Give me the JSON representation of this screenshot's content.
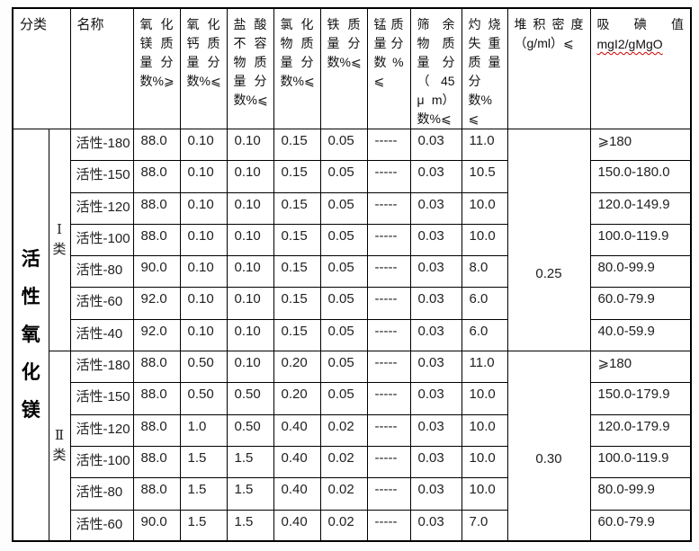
{
  "header": {
    "classification": "分类",
    "name": "名称",
    "cols": [
      {
        "id": "mgo-mass-fraction",
        "lines": [
          "氧 化",
          "镁 质",
          "量 分",
          "数%⩾"
        ]
      },
      {
        "id": "cao-mass-fraction",
        "lines": [
          "氧 化",
          "钙 质",
          "量 分",
          "数%⩽"
        ]
      },
      {
        "id": "hcl-insoluble-fraction",
        "lines": [
          "盐 酸",
          "不 容",
          "物 质",
          "量 分",
          "数%⩽"
        ]
      },
      {
        "id": "chloride-fraction",
        "lines": [
          "氯 化",
          "物 质",
          "量 分",
          "数%⩽"
        ]
      },
      {
        "id": "iron-fraction",
        "lines": [
          "铁 质",
          "量 分",
          "数%⩽"
        ]
      },
      {
        "id": "manganese-fraction",
        "lines": [
          "锰 质",
          "量 分",
          "数 %",
          "⩽"
        ]
      },
      {
        "id": "sieve-residue-45um",
        "lines": [
          "筛 余",
          "物 质",
          "量 分",
          "（ 45",
          "μ m）",
          "数%⩽"
        ]
      },
      {
        "id": "loss-on-ignition",
        "lines": [
          "灼 烧",
          "失 重",
          "质 量",
          "分数%",
          "⩽"
        ]
      },
      {
        "id": "bulk-density",
        "lines": [
          "堆 积 密 度",
          "（g/ml）⩽"
        ]
      },
      {
        "id": "iodine-absorption",
        "lines": [
          "吸 碘 值"
        ],
        "sub": "mgI2/gMgO"
      }
    ]
  },
  "main_label": "活\n性\n氧\n化\n镁",
  "groups": [
    {
      "class_label": "Ⅰ\n类",
      "density": "0.25",
      "rows": [
        {
          "name": "活性-180",
          "mgo": "88.0",
          "cao": "0.10",
          "hcl": "0.10",
          "cl": "0.15",
          "fe": "0.05",
          "mn": "-----",
          "sieve": "0.03",
          "loi": "11.0",
          "iodine": "⩾180"
        },
        {
          "name": "活性-150",
          "mgo": "88.0",
          "cao": "0.10",
          "hcl": "0.10",
          "cl": "0.15",
          "fe": "0.05",
          "mn": "-----",
          "sieve": "0.03",
          "loi": "10.5",
          "iodine": "150.0-180.0"
        },
        {
          "name": "活性-120",
          "mgo": "88.0",
          "cao": "0.10",
          "hcl": "0.10",
          "cl": "0.15",
          "fe": "0.05",
          "mn": "-----",
          "sieve": "0.03",
          "loi": "10.0",
          "iodine": "120.0-149.9"
        },
        {
          "name": "活性-100",
          "mgo": "88.0",
          "cao": "0.10",
          "hcl": "0.10",
          "cl": "0.15",
          "fe": "0.05",
          "mn": "-----",
          "sieve": "0.03",
          "loi": "10.0",
          "iodine": "100.0-119.9"
        },
        {
          "name": "活性-80",
          "mgo": "90.0",
          "cao": "0.10",
          "hcl": "0.10",
          "cl": "0.15",
          "fe": "0.05",
          "mn": "-----",
          "sieve": "0.03",
          "loi": "8.0",
          "iodine": "80.0-99.9"
        },
        {
          "name": "活性-60",
          "mgo": "92.0",
          "cao": "0.10",
          "hcl": "0.10",
          "cl": "0.15",
          "fe": "0.05",
          "mn": "-----",
          "sieve": "0.03",
          "loi": "6.0",
          "iodine": "60.0-79.9"
        },
        {
          "name": "活性-40",
          "mgo": "92.0",
          "cao": "0.10",
          "hcl": "0.10",
          "cl": "0.15",
          "fe": "0.05",
          "mn": "-----",
          "sieve": "0.03",
          "loi": "6.0",
          "iodine": "40.0-59.9"
        }
      ]
    },
    {
      "class_label": "Ⅱ\n类",
      "density": "0.30",
      "rows": [
        {
          "name": "活性-180",
          "mgo": "88.0",
          "cao": "0.50",
          "hcl": "0.10",
          "cl": "0.20",
          "fe": "0.05",
          "mn": "-----",
          "sieve": "0.03",
          "loi": "11.0",
          "iodine": "⩾180"
        },
        {
          "name": "活性-150",
          "mgo": "88.0",
          "cao": "0.50",
          "hcl": "0.50",
          "cl": "0.20",
          "fe": "0.05",
          "mn": "-----",
          "sieve": "0.03",
          "loi": "10.0",
          "iodine": "150.0-179.9"
        },
        {
          "name": "活性-120",
          "mgo": "88.0",
          "cao": "1.0",
          "hcl": "0.50",
          "cl": "0.40",
          "fe": "0.02",
          "mn": "-----",
          "sieve": "0.03",
          "loi": "10.0",
          "iodine": "120.0-179.9"
        },
        {
          "name": "活性-100",
          "mgo": "88.0",
          "cao": "1.5",
          "hcl": "1.5",
          "cl": "0.40",
          "fe": "0.02",
          "mn": "-----",
          "sieve": "0.03",
          "loi": "10.0",
          "iodine": "100.0-119.9"
        },
        {
          "name": "活性-80",
          "mgo": "88.0",
          "cao": "1.5",
          "hcl": "1.5",
          "cl": "0.40",
          "fe": "0.02",
          "mn": "-----",
          "sieve": "0.03",
          "loi": "10.0",
          "iodine": "80.0-99.9"
        },
        {
          "name": "活性-60",
          "mgo": "90.0",
          "cao": "1.5",
          "hcl": "1.5",
          "cl": "0.40",
          "fe": "0.02",
          "mn": "-----",
          "sieve": "0.03",
          "loi": "7.0",
          "iodine": "60.0-79.9"
        }
      ]
    }
  ]
}
